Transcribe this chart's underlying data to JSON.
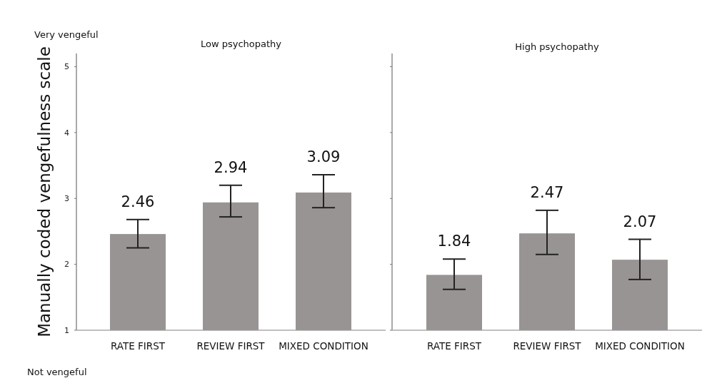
{
  "chart_data": [
    {
      "type": "bar",
      "title": "Low psychopathy",
      "ylabel": "Manually coded vengefulness scale",
      "categories": [
        "RATE FIRST",
        "REVIEW FIRST",
        "MIXED CONDITION"
      ],
      "values": [
        2.46,
        2.94,
        3.09
      ],
      "errors": [
        [
          2.25,
          2.68
        ],
        [
          2.72,
          3.2
        ],
        [
          2.86,
          3.36
        ]
      ],
      "color": "#999494",
      "ylim": [
        1,
        5.2
      ],
      "yticks": [
        1,
        2,
        3,
        4,
        5
      ],
      "data_labels": true,
      "grid": false,
      "annotations": [
        "Very vengeful",
        "Not vengeful"
      ]
    },
    {
      "type": "bar",
      "title": "High psychopathy",
      "categories": [
        "RATE FIRST",
        "REVIEW FIRST",
        "MIXED CONDITION"
      ],
      "values": [
        1.84,
        2.47,
        2.07
      ],
      "errors": [
        [
          1.62,
          2.08
        ],
        [
          2.15,
          2.82
        ],
        [
          1.77,
          2.38
        ]
      ],
      "color": "#999494",
      "ylim": [
        1,
        5.2
      ],
      "yticks": [
        1,
        2,
        3,
        4,
        5
      ],
      "data_labels": true,
      "grid": false,
      "tick_labels": "x"
    }
  ]
}
